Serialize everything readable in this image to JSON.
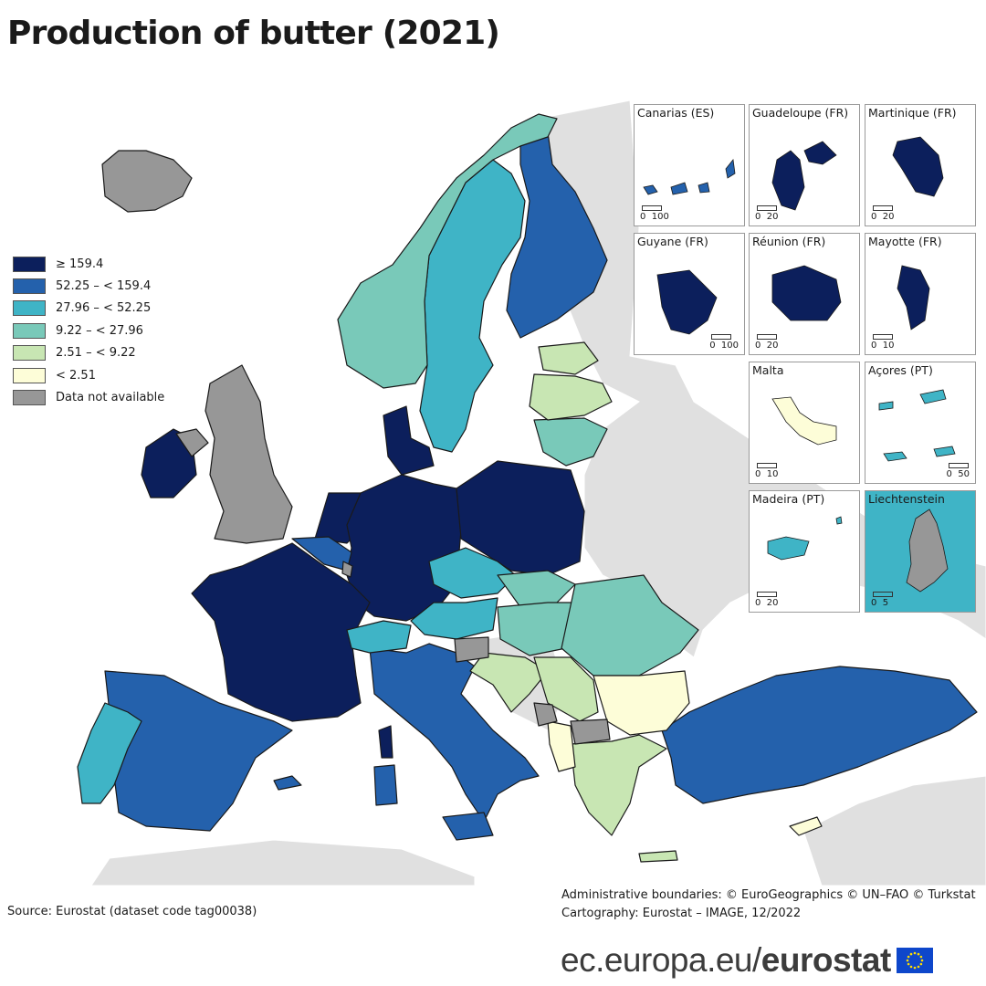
{
  "title": "Production of butter (2021)",
  "legend": {
    "classes": [
      {
        "label": "≥ 159.4",
        "color": "#0c1f5c"
      },
      {
        "label": "52.25 – < 159.4",
        "color": "#2461ac"
      },
      {
        "label": "27.96 – < 52.25",
        "color": "#3fb4c6"
      },
      {
        "label": "9.22 – < 27.96",
        "color": "#79c9b9"
      },
      {
        "label": "2.51 – < 9.22",
        "color": "#c8e6b3"
      },
      {
        "label": "< 2.51",
        "color": "#fdfdd8"
      },
      {
        "label": "Data not available",
        "color": "#979797"
      }
    ]
  },
  "colors": {
    "non_eu_land": "#e0e0e0",
    "sea": "#ffffff",
    "border": "#1a1a1a"
  },
  "regions": [
    {
      "name": "Ireland",
      "class": 0
    },
    {
      "name": "Denmark",
      "class": 0
    },
    {
      "name": "Netherlands",
      "class": 0
    },
    {
      "name": "Germany",
      "class": 0
    },
    {
      "name": "Poland",
      "class": 0
    },
    {
      "name": "France",
      "class": 0
    },
    {
      "name": "Belgium",
      "class": 1
    },
    {
      "name": "Finland",
      "class": 1
    },
    {
      "name": "Spain",
      "class": 1
    },
    {
      "name": "Italy",
      "class": 1
    },
    {
      "name": "Türkiye",
      "class": 1
    },
    {
      "name": "Sweden",
      "class": 2
    },
    {
      "name": "Portugal",
      "class": 2
    },
    {
      "name": "Czechia",
      "class": 2
    },
    {
      "name": "Austria",
      "class": 2
    },
    {
      "name": "Switzerland",
      "class": 2
    },
    {
      "name": "Norway",
      "class": 3
    },
    {
      "name": "Lithuania",
      "class": 3
    },
    {
      "name": "Slovakia",
      "class": 3
    },
    {
      "name": "Hungary",
      "class": 3
    },
    {
      "name": "Romania",
      "class": 3
    },
    {
      "name": "Estonia",
      "class": 4
    },
    {
      "name": "Latvia",
      "class": 4
    },
    {
      "name": "Croatia",
      "class": 4
    },
    {
      "name": "Serbia",
      "class": 4
    },
    {
      "name": "Greece",
      "class": 4
    },
    {
      "name": "Bulgaria",
      "class": 5
    },
    {
      "name": "Albania",
      "class": 5
    },
    {
      "name": "Cyprus",
      "class": 5
    },
    {
      "name": "Iceland",
      "class": 6
    },
    {
      "name": "United Kingdom",
      "class": 6
    },
    {
      "name": "Northern Ireland",
      "class": 6
    },
    {
      "name": "Slovenia",
      "class": 6
    },
    {
      "name": "Montenegro",
      "class": 6
    },
    {
      "name": "North Macedonia",
      "class": 6
    },
    {
      "name": "Luxembourg",
      "class": 6
    }
  ],
  "insets": [
    {
      "title": "Canarias (ES)",
      "scale": [
        "0",
        "100"
      ],
      "class": 1
    },
    {
      "title": "Guadeloupe (FR)",
      "scale": [
        "0",
        "20"
      ],
      "class": 0
    },
    {
      "title": "Martinique (FR)",
      "scale": [
        "0",
        "20"
      ],
      "class": 0
    },
    {
      "title": "Guyane (FR)",
      "scale": [
        "0",
        "100"
      ],
      "class": 0
    },
    {
      "title": "Réunion (FR)",
      "scale": [
        "0",
        "20"
      ],
      "class": 0
    },
    {
      "title": "Mayotte (FR)",
      "scale": [
        "0",
        "10"
      ],
      "class": 0
    },
    {
      "title": "Malta",
      "scale": [
        "0",
        "10"
      ],
      "class": 5
    },
    {
      "title": "Açores (PT)",
      "scale": [
        "0",
        "50"
      ],
      "class": 2
    },
    {
      "title": "Madeira (PT)",
      "scale": [
        "0",
        "20"
      ],
      "class": 2
    },
    {
      "title": "Liechtenstein",
      "scale": [
        "0",
        "5"
      ],
      "class": 6
    }
  ],
  "source": "Source: Eurostat (dataset code tag00038)",
  "admin_line1": "Administrative boundaries: © EuroGeographics © UN–FAO © Turkstat",
  "admin_line2": "Cartography: Eurostat – IMAGE, 12/2022",
  "brand": {
    "url": "ec.europa.eu/",
    "name": "eurostat"
  }
}
